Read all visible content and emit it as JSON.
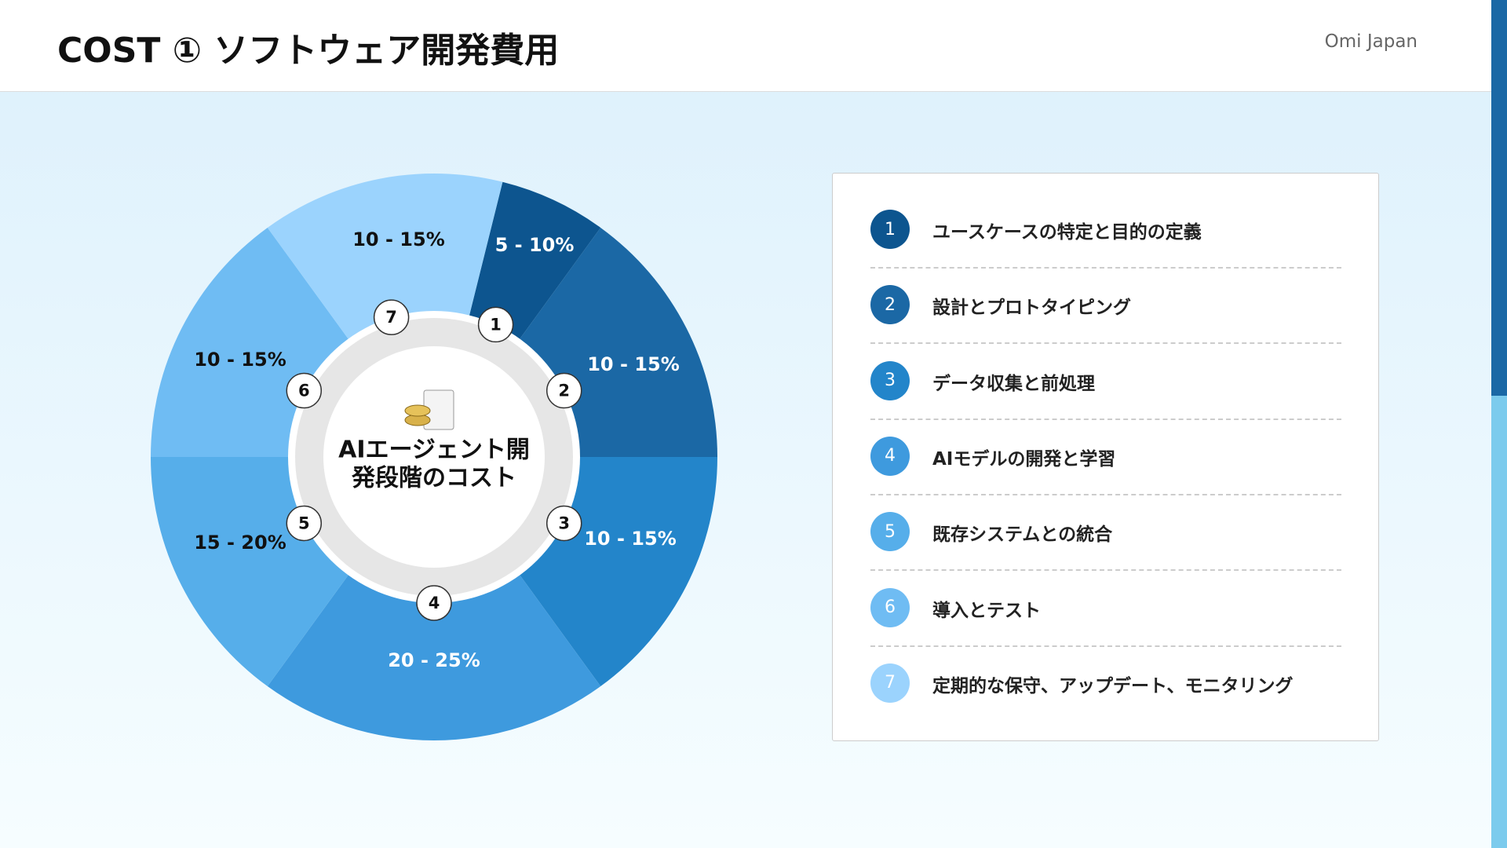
{
  "header": {
    "title": "COST ① ソフトウェア開発費用",
    "brand": "Omi Japan"
  },
  "center_label": [
    "AIエージェント開",
    "発段階のコスト"
  ],
  "segments": [
    {
      "number": 1,
      "range": "5 - 10%",
      "label": "ユースケースの特定と目的の定義",
      "color": "#0d558f"
    },
    {
      "number": 2,
      "range": "10 - 15%",
      "label": "設計とプロトタイピング",
      "color": "#1b68a5"
    },
    {
      "number": 3,
      "range": "10 - 15%",
      "label": "データ収集と前処理",
      "color": "#2385ca"
    },
    {
      "number": 4,
      "range": "20 - 25%",
      "label": "AIモデルの開発と学習",
      "color": "#3e9ade"
    },
    {
      "number": 5,
      "range": "15 - 20%",
      "label": "既存システムとの統合",
      "color": "#56aeea"
    },
    {
      "number": 6,
      "range": "10 - 15%",
      "label": "導入とテスト",
      "color": "#6fbcf3"
    },
    {
      "number": 7,
      "range": "10 - 15%",
      "label": "定期的な保守、アップデート、モニタリング",
      "color": "#9bd3fd"
    }
  ]
}
